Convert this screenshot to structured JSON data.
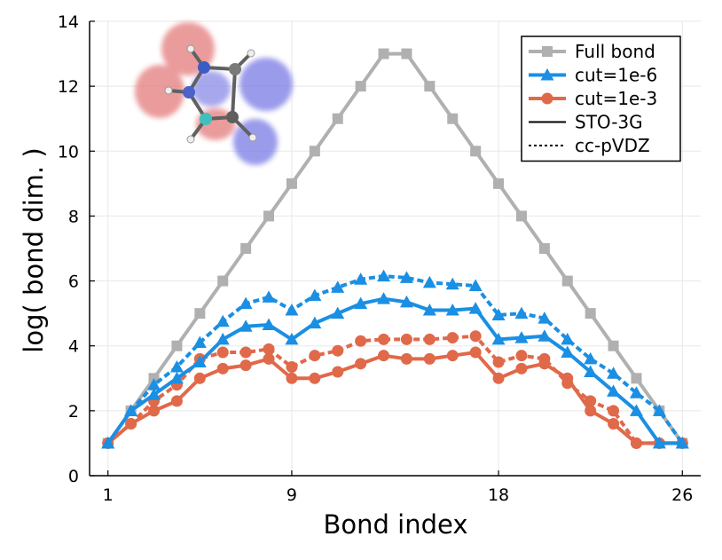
{
  "chart_data": {
    "type": "line",
    "xlabel": "Bond index",
    "ylabel": "log( bond dim. )",
    "xlim": [
      0.2,
      26.8
    ],
    "ylim": [
      0,
      14
    ],
    "xticks": [
      1,
      9,
      18,
      26
    ],
    "yticks": [
      0,
      2,
      4,
      6,
      8,
      10,
      12,
      14
    ],
    "grid": true,
    "legend_position": "top-right",
    "legend": [
      {
        "label": "Full bond",
        "color": "#b0b0b0",
        "marker": "square",
        "style": "solid"
      },
      {
        "label": "cut=1e-6",
        "color": "#1a8fe3",
        "marker": "triangle",
        "style": "solid"
      },
      {
        "label": "cut=1e-3",
        "color": "#e0694a",
        "marker": "circle",
        "style": "solid"
      },
      {
        "label": "STO-3G",
        "color": "#000000",
        "marker": "none",
        "style": "solid"
      },
      {
        "label": "cc-pVDZ",
        "color": "#000000",
        "marker": "none",
        "style": "dotted"
      }
    ],
    "series": [
      {
        "name": "Full bond",
        "basis": "STO-3G",
        "color": "#b0b0b0",
        "marker": "square",
        "style": "solid",
        "x": [
          1,
          2,
          3,
          4,
          5,
          6,
          7,
          8,
          9,
          10,
          11,
          12,
          13,
          14,
          15,
          16,
          17,
          18,
          19,
          20,
          21,
          22,
          23,
          24,
          25,
          26
        ],
        "y": [
          1,
          2,
          3,
          4,
          5,
          6,
          7,
          8,
          9,
          10,
          11,
          12,
          13,
          13,
          12,
          11,
          10,
          9,
          8,
          7,
          6,
          5,
          4,
          3,
          2,
          1
        ]
      },
      {
        "name": "cut=1e-3",
        "basis": "cc-pVDZ",
        "color": "#e0694a",
        "marker": "circle",
        "style": "dotted",
        "x": [
          1,
          2,
          3,
          4,
          5,
          6,
          7,
          8,
          9,
          10,
          11,
          12,
          13,
          14,
          15,
          16,
          17,
          18,
          19,
          20,
          21,
          22,
          23,
          24,
          25,
          26
        ],
        "y": [
          1.0,
          1.6,
          2.3,
          2.8,
          3.6,
          3.8,
          3.8,
          3.9,
          3.35,
          3.7,
          3.85,
          4.15,
          4.2,
          4.2,
          4.2,
          4.25,
          4.3,
          3.5,
          3.7,
          3.6,
          2.85,
          2.3,
          2.0,
          1.0,
          1.0,
          1.0
        ]
      },
      {
        "name": "cut=1e-3",
        "basis": "STO-3G",
        "color": "#e0694a",
        "marker": "circle",
        "style": "solid",
        "x": [
          1,
          2,
          3,
          4,
          5,
          6,
          7,
          8,
          9,
          10,
          11,
          12,
          13,
          14,
          15,
          16,
          17,
          18,
          19,
          20,
          21,
          22,
          23,
          24,
          25,
          26
        ],
        "y": [
          1.0,
          1.6,
          2.0,
          2.3,
          3.0,
          3.3,
          3.4,
          3.6,
          3.0,
          3.0,
          3.2,
          3.45,
          3.7,
          3.6,
          3.6,
          3.7,
          3.8,
          3.0,
          3.3,
          3.45,
          3.0,
          2.0,
          1.6,
          1.0,
          1.0,
          1.0
        ]
      },
      {
        "name": "cut=1e-6",
        "basis": "cc-pVDZ",
        "color": "#1a8fe3",
        "marker": "triangle",
        "style": "dotted",
        "x": [
          1,
          2,
          3,
          4,
          5,
          6,
          7,
          8,
          9,
          10,
          11,
          12,
          13,
          14,
          15,
          16,
          17,
          18,
          19,
          20,
          21,
          22,
          23,
          24,
          25,
          26
        ],
        "y": [
          1.0,
          2.0,
          2.8,
          3.35,
          4.1,
          4.75,
          5.3,
          5.5,
          5.1,
          5.55,
          5.8,
          6.05,
          6.15,
          6.1,
          5.95,
          5.9,
          5.85,
          4.95,
          5.0,
          4.85,
          4.2,
          3.6,
          3.15,
          2.55,
          2.0,
          1.0
        ]
      },
      {
        "name": "cut=1e-6",
        "basis": "STO-3G",
        "color": "#1a8fe3",
        "marker": "triangle",
        "style": "solid",
        "x": [
          1,
          2,
          3,
          4,
          5,
          6,
          7,
          8,
          9,
          10,
          11,
          12,
          13,
          14,
          15,
          16,
          17,
          18,
          19,
          20,
          21,
          22,
          23,
          24,
          25,
          26
        ],
        "y": [
          1.0,
          2.0,
          2.5,
          3.0,
          3.5,
          4.2,
          4.6,
          4.65,
          4.2,
          4.7,
          5.0,
          5.3,
          5.45,
          5.35,
          5.1,
          5.1,
          5.15,
          4.2,
          4.25,
          4.3,
          3.8,
          3.2,
          2.6,
          2.0,
          1.0,
          1.0
        ]
      }
    ],
    "inset": {
      "description": "molecule-orbital-inset",
      "lobe_colors": [
        "#e88a8a",
        "#8a8ae8"
      ]
    }
  }
}
